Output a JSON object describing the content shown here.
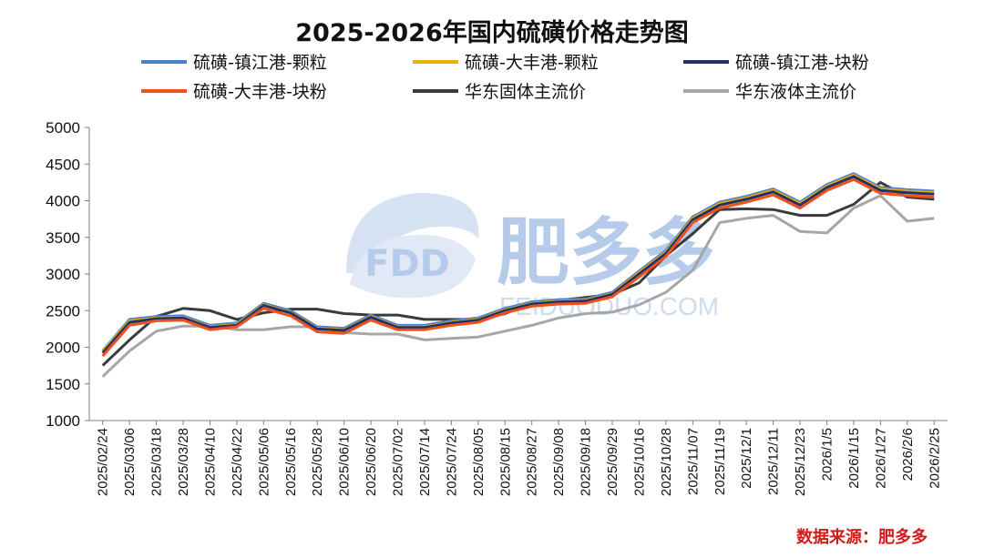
{
  "chart_data": {
    "type": "line",
    "title": "2025-2026年国内硫磺价格走势图",
    "ylim": [
      1000,
      5000
    ],
    "yticks": [
      1000,
      1500,
      2000,
      2500,
      3000,
      3500,
      4000,
      4500,
      5000
    ],
    "categories": [
      "2025/02/24",
      "2025/03/06",
      "2025/03/18",
      "2025/03/28",
      "2025/04/10",
      "2025/04/22",
      "2025/05/06",
      "2025/05/16",
      "2025/05/28",
      "2025/06/10",
      "2025/06/20",
      "2025/07/02",
      "2025/07/14",
      "2025/07/24",
      "2025/08/05",
      "2025/08/15",
      "2025/08/27",
      "2025/09/08",
      "2025/09/18",
      "2025/09/29",
      "2025/10/16",
      "2025/10/28",
      "2025/11/07",
      "2025/11/19",
      "2025/12/1",
      "2025/12/11",
      "2025/12/23",
      "2026/1/5",
      "2026/1/15",
      "2026/1/27",
      "2026/2/6",
      "2026/2/25"
    ],
    "series": [
      {
        "name": "硫磺-镇江港-颗粒",
        "color": "#4a7fc9",
        "values": [
          1950,
          2380,
          2420,
          2430,
          2300,
          2330,
          2600,
          2500,
          2280,
          2260,
          2440,
          2300,
          2300,
          2360,
          2400,
          2530,
          2620,
          2650,
          2660,
          2750,
          3040,
          3320,
          3780,
          3980,
          4060,
          4160,
          3980,
          4220,
          4370,
          4180,
          4150,
          4130
        ]
      },
      {
        "name": "硫磺-大丰港-颗粒",
        "color": "#e7b10a",
        "values": [
          1940,
          2360,
          2400,
          2410,
          2280,
          2310,
          2580,
          2480,
          2260,
          2240,
          2420,
          2280,
          2280,
          2340,
          2380,
          2510,
          2600,
          2630,
          2640,
          2730,
          3020,
          3300,
          3760,
          3960,
          4040,
          4140,
          3960,
          4200,
          4350,
          4160,
          4130,
          4110
        ]
      },
      {
        "name": "硫磺-镇江港-块粉",
        "color": "#1f3369",
        "values": [
          1920,
          2340,
          2390,
          2400,
          2270,
          2300,
          2570,
          2470,
          2250,
          2230,
          2410,
          2270,
          2270,
          2330,
          2370,
          2500,
          2590,
          2620,
          2630,
          2720,
          3000,
          3280,
          3740,
          3940,
          4020,
          4120,
          3940,
          4180,
          4330,
          4140,
          4110,
          4090
        ]
      },
      {
        "name": "硫磺-大丰港-块粉",
        "color": "#f0511a",
        "values": [
          1880,
          2300,
          2360,
          2370,
          2240,
          2280,
          2530,
          2430,
          2210,
          2190,
          2370,
          2240,
          2240,
          2300,
          2340,
          2470,
          2560,
          2590,
          2600,
          2690,
          2960,
          3240,
          3700,
          3900,
          3980,
          4080,
          3900,
          4140,
          4290,
          4100,
          4070,
          4050
        ]
      },
      {
        "name": "华东固体主流价",
        "color": "#3b3b3b",
        "values": [
          1750,
          2100,
          2420,
          2530,
          2500,
          2380,
          2470,
          2520,
          2520,
          2460,
          2440,
          2440,
          2380,
          2380,
          2380,
          2460,
          2600,
          2640,
          2680,
          2720,
          2880,
          3250,
          3550,
          3880,
          3890,
          3880,
          3800,
          3800,
          3950,
          4250,
          4050,
          4020
        ]
      },
      {
        "name": "华东液体主流价",
        "color": "#a6a6a6",
        "values": [
          1600,
          1950,
          2220,
          2290,
          2290,
          2240,
          2240,
          2280,
          2280,
          2200,
          2180,
          2180,
          2100,
          2120,
          2140,
          2220,
          2300,
          2400,
          2460,
          2480,
          2580,
          2750,
          3050,
          3700,
          3760,
          3800,
          3580,
          3560,
          3900,
          4070,
          3720,
          3760
        ]
      }
    ]
  },
  "watermark": {
    "brand": "FDD",
    "name": "肥多多",
    "url": "FEIDUODUO.COM"
  },
  "source_label": "数据来源：肥多多"
}
